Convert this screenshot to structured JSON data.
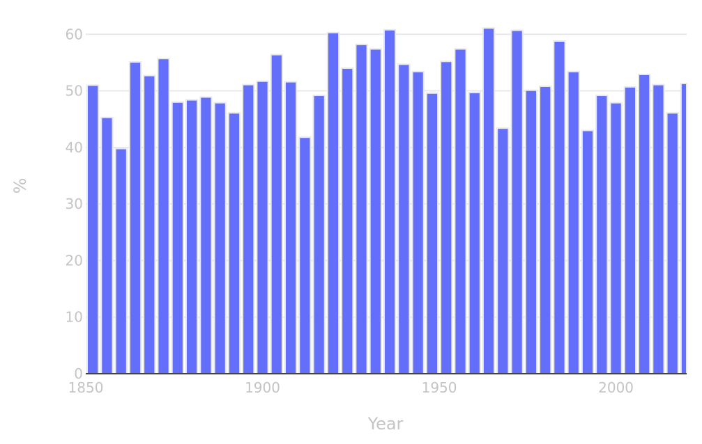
{
  "chart_data": {
    "type": "bar",
    "title": "",
    "xlabel": "Year",
    "ylabel": "%",
    "xlim": [
      1850,
      2020
    ],
    "ylim": [
      0,
      62
    ],
    "xticks": [
      1850,
      1900,
      1950,
      2000
    ],
    "yticks": [
      0,
      10,
      20,
      30,
      40,
      50,
      60
    ],
    "grid": true,
    "bar_color": "#636efa",
    "x": [
      1852,
      1856,
      1860,
      1864,
      1868,
      1872,
      1876,
      1880,
      1884,
      1888,
      1892,
      1896,
      1900,
      1904,
      1908,
      1912,
      1916,
      1920,
      1924,
      1928,
      1932,
      1936,
      1940,
      1944,
      1948,
      1952,
      1956,
      1960,
      1964,
      1968,
      1972,
      1976,
      1980,
      1984,
      1988,
      1992,
      1996,
      2000,
      2004,
      2008,
      2012,
      2016,
      2020
    ],
    "values": [
      51,
      45.3,
      39.8,
      55.1,
      52.7,
      55.7,
      48,
      48.4,
      48.9,
      47.9,
      46.1,
      51.1,
      51.7,
      56.4,
      51.6,
      41.8,
      49.2,
      60.3,
      54.0,
      58.2,
      57.4,
      60.8,
      54.7,
      53.4,
      49.6,
      55.2,
      57.4,
      49.7,
      61.1,
      43.4,
      60.7,
      50.1,
      50.8,
      58.8,
      53.4,
      43.0,
      49.2,
      47.9,
      50.7,
      52.9,
      51.1,
      46.1,
      51.3
    ]
  }
}
